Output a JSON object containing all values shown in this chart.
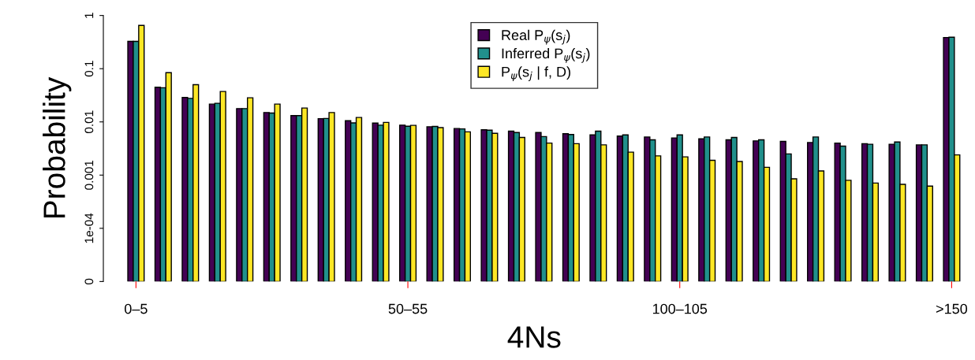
{
  "chart_data": {
    "type": "bar",
    "xlabel": "4Ns",
    "ylabel": "Probability",
    "categories": [
      "0–5",
      null,
      null,
      null,
      null,
      null,
      null,
      null,
      null,
      null,
      "50–55",
      null,
      null,
      null,
      null,
      null,
      null,
      null,
      null,
      null,
      "100–105",
      null,
      null,
      null,
      null,
      null,
      null,
      null,
      null,
      null,
      ">150"
    ],
    "log": true,
    "ylim": [
      1e-05,
      1
    ],
    "yticks": [
      {
        "value": 1e-05,
        "label": "0"
      },
      {
        "value": 0.0001,
        "label": "1e-04"
      },
      {
        "value": 0.001,
        "label": "0.001"
      },
      {
        "value": 0.01,
        "label": "0.01"
      },
      {
        "value": 0.1,
        "label": "0.1"
      },
      {
        "value": 1,
        "label": "1"
      }
    ],
    "legend": "top",
    "grid": false,
    "series": [
      {
        "name": "Real P$_{ψ}$(s$_{j}$)",
        "color": "#440154",
        "values": [
          0.326,
          0.0447,
          0.0287,
          0.0216,
          0.0178,
          0.015,
          0.0131,
          0.0115,
          0.0105,
          0.0095,
          0.0087,
          0.0081,
          0.0075,
          0.0071,
          0.0067,
          0.0063,
          0.006,
          0.0057,
          0.0054,
          0.0052,
          0.005,
          0.0048,
          0.0046,
          0.0044,
          0.0043,
          0.0041,
          0.004,
          0.0039,
          0.0038,
          0.0037,
          0.386
        ]
      },
      {
        "name": "Inferred P$_{ψ}$(s$_{j}$)",
        "color": "#21908c",
        "values": [
          0.326,
          0.0438,
          0.0277,
          0.0224,
          0.0178,
          0.0147,
          0.0131,
          0.0116,
          0.0096,
          0.0087,
          0.0083,
          0.0082,
          0.0074,
          0.007,
          0.0063,
          0.0053,
          0.0058,
          0.0067,
          0.0057,
          0.0046,
          0.0057,
          0.0052,
          0.0051,
          0.0046,
          0.0025,
          0.0052,
          0.0035,
          0.0038,
          0.0042,
          0.0037,
          0.39
        ]
      },
      {
        "name": "P$_{ψ}$(s$_{j}$ | f, D)",
        "color": "#fde725",
        "values": [
          0.65,
          0.0843,
          0.0501,
          0.0373,
          0.0284,
          0.0216,
          0.0182,
          0.015,
          0.0121,
          0.0098,
          0.0086,
          0.0078,
          0.0065,
          0.0061,
          0.0051,
          0.004,
          0.0039,
          0.0037,
          0.0027,
          0.0023,
          0.0022,
          0.0019,
          0.0018,
          0.0014,
          0.00085,
          0.0012,
          0.0008,
          0.00071,
          0.00067,
          0.00062,
          0.0024
        ]
      }
    ]
  }
}
